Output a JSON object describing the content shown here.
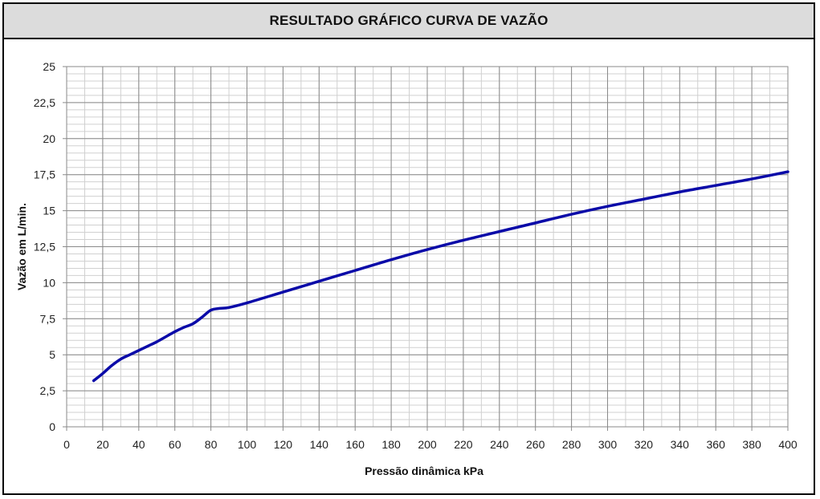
{
  "chart_data": {
    "type": "line",
    "title": "RESULTADO GRÁFICO CURVA DE VAZÃO",
    "xlabel": "Pressão dinâmica kPa",
    "ylabel": "Vazão em L/min.",
    "xlim": [
      0,
      400
    ],
    "ylim": [
      0,
      25
    ],
    "x_ticks": [
      "0",
      "20",
      "40",
      "60",
      "80",
      "100",
      "120",
      "140",
      "160",
      "180",
      "200",
      "220",
      "240",
      "260",
      "280",
      "300",
      "320",
      "340",
      "360",
      "380",
      "400"
    ],
    "y_ticks": [
      "0",
      "2,5",
      "5",
      "7,5",
      "10",
      "12,5",
      "15",
      "17,5",
      "20",
      "22,5",
      "25"
    ],
    "x_minor_step": 10,
    "y_minor_step": 0.5,
    "grid": true,
    "line_color": "#0a0aa8",
    "series": [
      {
        "points": [
          [
            15,
            3.2
          ],
          [
            20,
            3.7
          ],
          [
            25,
            4.25
          ],
          [
            30,
            4.7
          ],
          [
            35,
            5.0
          ],
          [
            40,
            5.3
          ],
          [
            45,
            5.6
          ],
          [
            50,
            5.9
          ],
          [
            55,
            6.25
          ],
          [
            60,
            6.6
          ],
          [
            65,
            6.9
          ],
          [
            70,
            7.15
          ],
          [
            75,
            7.6
          ],
          [
            80,
            8.1
          ],
          [
            85,
            8.22
          ],
          [
            90,
            8.28
          ],
          [
            100,
            8.6
          ],
          [
            120,
            9.35
          ],
          [
            140,
            10.1
          ],
          [
            160,
            10.85
          ],
          [
            180,
            11.6
          ],
          [
            200,
            12.3
          ],
          [
            220,
            12.95
          ],
          [
            240,
            13.55
          ],
          [
            260,
            14.15
          ],
          [
            280,
            14.75
          ],
          [
            300,
            15.3
          ],
          [
            320,
            15.8
          ],
          [
            340,
            16.3
          ],
          [
            360,
            16.75
          ],
          [
            380,
            17.2
          ],
          [
            400,
            17.7
          ]
        ]
      }
    ]
  }
}
